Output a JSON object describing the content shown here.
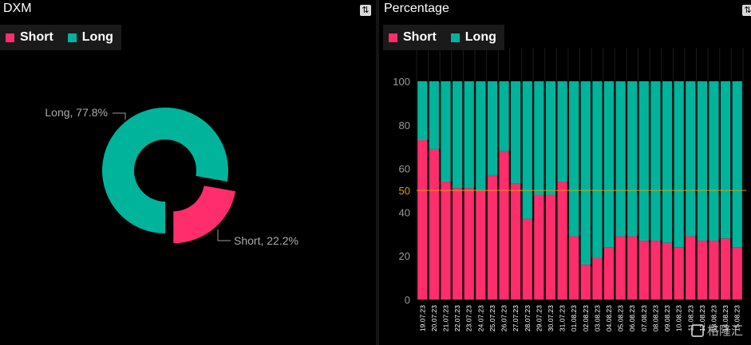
{
  "left_panel": {
    "title": "DXM",
    "settings_icon": "swap-icon",
    "legend": [
      {
        "label": "Short",
        "color": "#ff2d6b"
      },
      {
        "label": "Long",
        "color": "#00b39b"
      }
    ],
    "callouts": {
      "long": "Long, 77.8%",
      "short": "Short, 22.2%"
    }
  },
  "right_panel": {
    "title": "Percentage",
    "settings_icon": "swap-icon",
    "legend": [
      {
        "label": "Short",
        "color": "#ff2d6b"
      },
      {
        "label": "Long",
        "color": "#00b39b"
      }
    ]
  },
  "watermark": {
    "text": "格隆汇"
  },
  "chart_data": [
    {
      "type": "pie",
      "title": "DXM",
      "labels": [
        "Long",
        "Short"
      ],
      "values": [
        77.8,
        22.2
      ],
      "colors": [
        "#00b39b",
        "#ff2d6b"
      ],
      "donut": true,
      "legend_position": "top-left"
    },
    {
      "type": "bar",
      "stacked": true,
      "title": "Percentage",
      "categories": [
        "19.07.23",
        "20.07.23",
        "21.07.23",
        "22.07.23",
        "23.07.23",
        "24.07.23",
        "25.07.23",
        "26.07.23",
        "27.07.23",
        "28.07.23",
        "29.07.23",
        "30.07.23",
        "31.07.23",
        "01.08.23",
        "02.08.23",
        "03.08.23",
        "04.08.23",
        "05.08.23",
        "06.08.23",
        "07.08.23",
        "08.08.23",
        "09.08.23",
        "10.08.23",
        "11.08.23",
        "12.08.23",
        "13.08.23",
        "14.08.23",
        "15.08.23"
      ],
      "series": [
        {
          "name": "Short",
          "color": "#ff2d6b",
          "values": [
            73,
            69,
            54,
            51,
            51,
            50,
            57,
            68,
            53,
            37,
            48,
            48,
            54,
            29,
            16,
            19,
            24,
            29,
            29,
            27,
            27,
            26,
            24,
            29,
            27,
            27,
            28,
            24
          ]
        },
        {
          "name": "Long",
          "color": "#00b39b",
          "values": [
            27,
            31,
            46,
            49,
            49,
            50,
            43,
            32,
            47,
            63,
            52,
            52,
            46,
            71,
            84,
            81,
            76,
            71,
            71,
            73,
            73,
            74,
            76,
            71,
            73,
            73,
            72,
            76
          ]
        }
      ],
      "yticks": [
        0,
        20,
        40,
        50,
        60,
        80,
        100
      ],
      "ylim": [
        0,
        100
      ],
      "reference_line": {
        "value": 50,
        "color": "#e0a000"
      },
      "legend_position": "top-left"
    }
  ]
}
